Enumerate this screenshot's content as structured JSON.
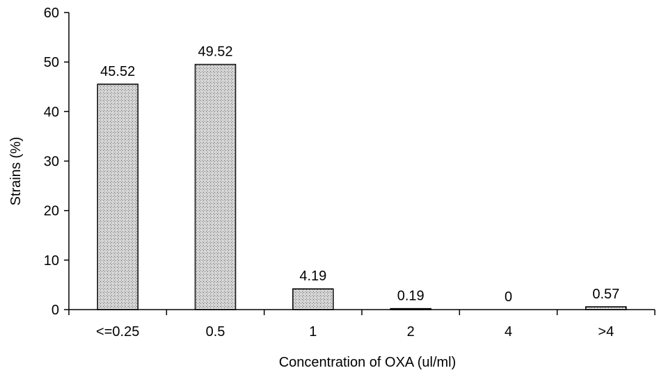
{
  "chart_data": {
    "type": "bar",
    "categories": [
      "<=0.25",
      "0.5",
      "1",
      "2",
      "4",
      ">4"
    ],
    "values": [
      45.52,
      49.52,
      4.19,
      0.19,
      0,
      0.57
    ],
    "data_labels": [
      "45.52",
      "49.52",
      "4.19",
      "0.19",
      "0",
      "0.57"
    ],
    "title": "",
    "xlabel": "Concentration of OXA (ul/ml)",
    "ylabel": "Strains (%)",
    "ylim": [
      0,
      60
    ],
    "yticks": [
      "0",
      "10",
      "20",
      "30",
      "40",
      "50",
      "60"
    ],
    "grid": false,
    "legend": "none",
    "bar_fill": "#ffffff",
    "bar_pattern_color": "#000000",
    "axis_color": "#000000"
  }
}
